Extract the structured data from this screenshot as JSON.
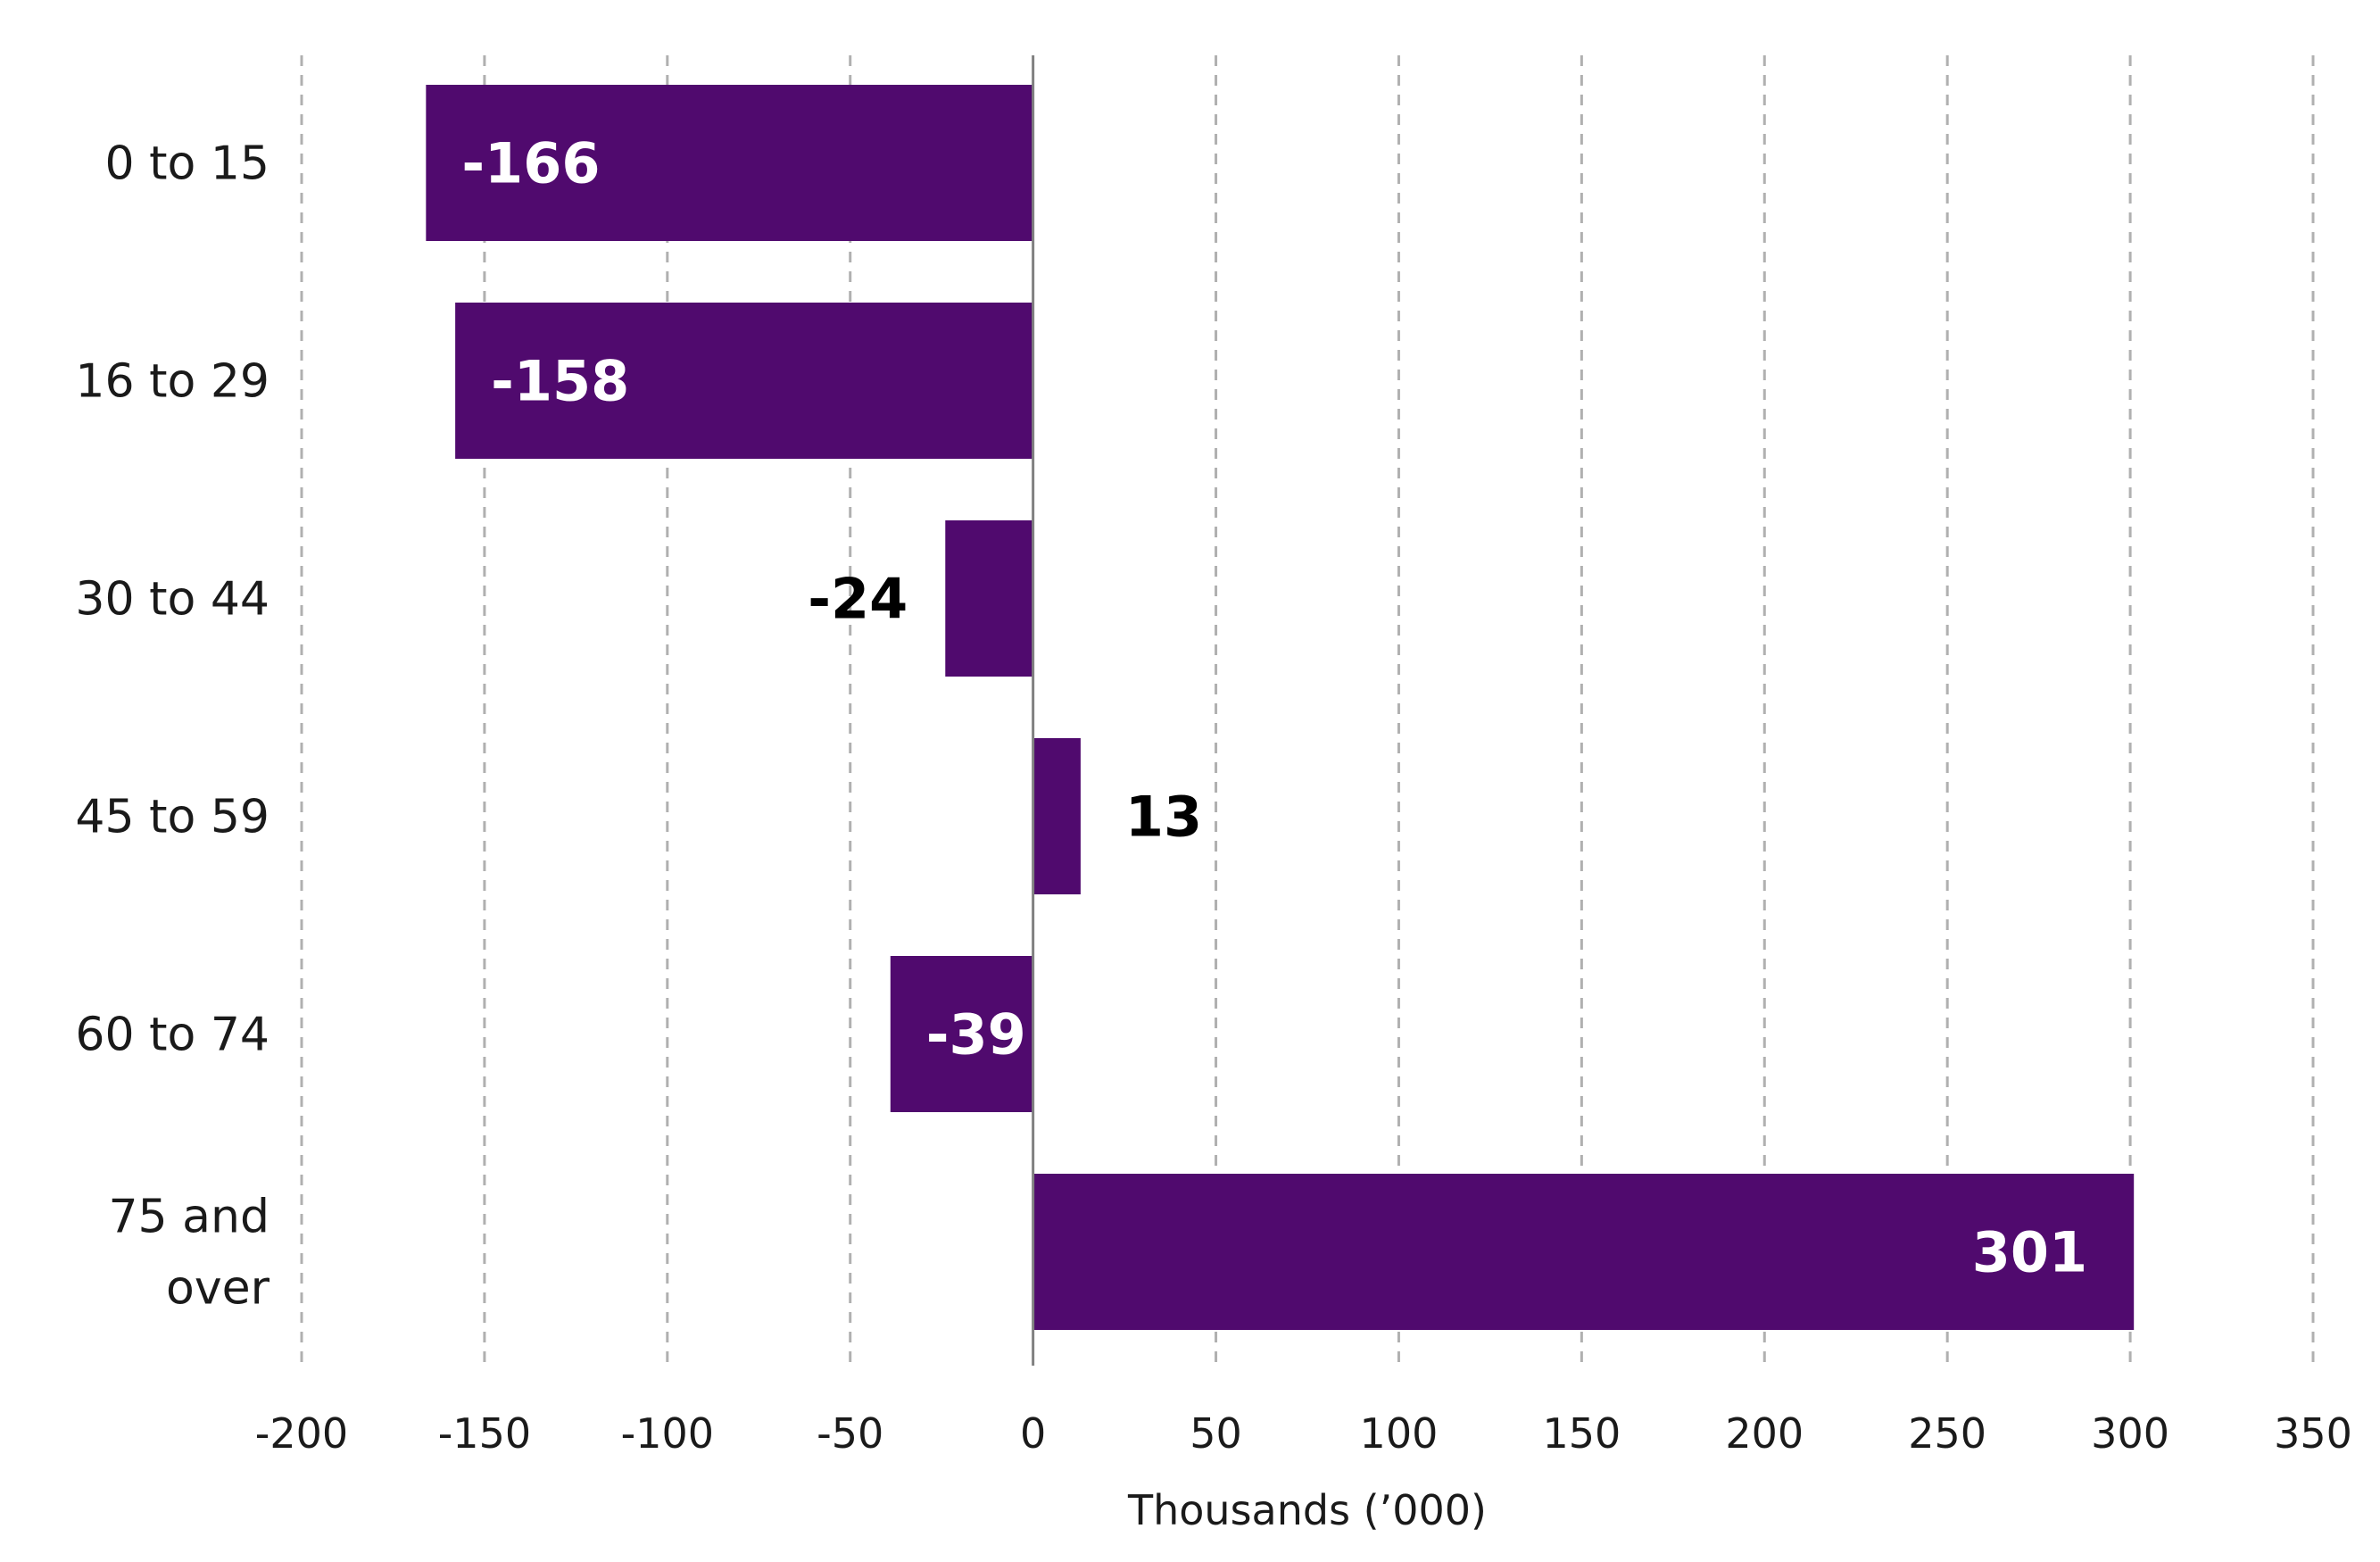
{
  "chart_data": {
    "type": "bar",
    "orientation": "horizontal",
    "categories": [
      "0 to 15",
      "16 to 29",
      "30 to 44",
      "45 to 59",
      "60 to 74",
      "75 and over"
    ],
    "category_lines": [
      [
        "0 to 15"
      ],
      [
        "16 to 29"
      ],
      [
        "30 to 44"
      ],
      [
        "45 to 59"
      ],
      [
        "60 to 74"
      ],
      [
        "75 and",
        "over"
      ]
    ],
    "values": [
      -166,
      -158,
      -24,
      13,
      -39,
      301
    ],
    "data_labels": [
      "-166",
      "-158",
      "-24",
      "13",
      "-39",
      "301"
    ],
    "xlabel": "Thousands (’000)",
    "xlim": [
      -200,
      350
    ],
    "xticks": [
      -200,
      -150,
      -100,
      -50,
      0,
      50,
      100,
      150,
      200,
      250,
      300,
      350
    ],
    "xtick_labels": [
      "-200",
      "-150",
      "-100",
      "-50",
      "0",
      "50",
      "100",
      "150",
      "200",
      "250",
      "300",
      "350"
    ],
    "grid": "vertical dashed",
    "colors": {
      "bar": "#500a6e",
      "label_inside": "#ffffff",
      "label_outside": "#000000",
      "grid": "#b0b0b0",
      "zero_line": "#808080"
    }
  }
}
